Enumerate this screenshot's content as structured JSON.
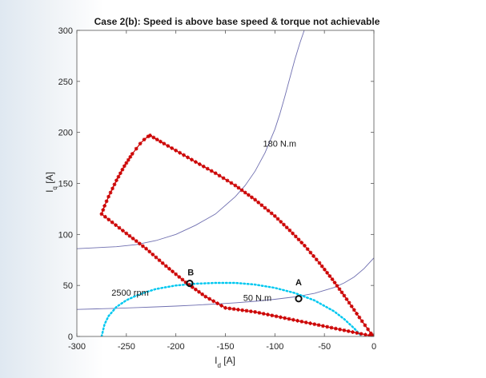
{
  "chart_data": {
    "type": "line",
    "title": "Case 2(b): Speed is above base speed & torque not achievable",
    "xlabel": "I",
    "xlabel_sub": "d",
    "xlabel_unit": "[A]",
    "ylabel": "I",
    "ylabel_sub": "q",
    "ylabel_unit": "[A]",
    "xlim": [
      -300,
      0
    ],
    "ylim": [
      0,
      300
    ],
    "xticks": [
      -300,
      -250,
      -200,
      -150,
      -100,
      -50,
      0
    ],
    "yticks": [
      0,
      50,
      100,
      150,
      200,
      250,
      300
    ],
    "grid": false,
    "series": [
      {
        "name": "",
        "style": "torque-contour",
        "color": "#6f6fb0",
        "x": [
          -300,
          -280,
          -260,
          -240,
          -220,
          -200,
          -180,
          -160,
          -140,
          -130,
          -120,
          -110,
          -100,
          -95,
          -90,
          -85,
          -80,
          -75,
          -70,
          -65
        ],
        "y": [
          86,
          87,
          88,
          90,
          94,
          100,
          109,
          120,
          137,
          148,
          162,
          180,
          203,
          218,
          235,
          253,
          271,
          287,
          301,
          312
        ]
      },
      {
        "name": "",
        "style": "torque-contour",
        "color": "#6f6fb0",
        "x": [
          -300,
          -280,
          -260,
          -240,
          -220,
          -200,
          -180,
          -160,
          -140,
          -120,
          -100,
          -80,
          -60,
          -40,
          -30,
          -20,
          -10,
          0
        ],
        "y": [
          26.5,
          27,
          27.6,
          28.3,
          29,
          29.8,
          30.7,
          31.8,
          33,
          34.5,
          36.4,
          38.8,
          42.2,
          48,
          52.5,
          58.3,
          66.4,
          77
        ]
      },
      {
        "name": "",
        "style": "voltage-ellipse",
        "color": "#00c8f0",
        "x": [
          -275,
          -272,
          -268,
          -260,
          -250,
          -240,
          -230,
          -220,
          -200,
          -180,
          -160,
          -140,
          -120,
          -100,
          -80,
          -60,
          -40,
          -30,
          -20,
          -15,
          -12
        ],
        "y": [
          0,
          12,
          20,
          29,
          35.5,
          40,
          43.5,
          46.5,
          50,
          51.7,
          52.5,
          52.5,
          50.8,
          47.6,
          42.6,
          35.3,
          24.5,
          17,
          8,
          3,
          0
        ]
      },
      {
        "name": "",
        "style": "trajectory",
        "color": "#cc0000",
        "x": [
          -275,
          -272,
          -268,
          -264,
          -260,
          -256,
          -252,
          -248,
          -244,
          -240,
          -236,
          -232,
          -228,
          -226,
          -212,
          -196,
          -180,
          -160,
          -140,
          -120,
          -100,
          -85,
          -70,
          -55,
          -42,
          -30,
          -20,
          -12,
          -6,
          -3,
          -1,
          0,
          -30,
          -60,
          -90,
          -120,
          -150,
          -170,
          -190,
          -210,
          -230,
          -250,
          -275
        ],
        "y": [
          120,
          128,
          137,
          145,
          153,
          160,
          167,
          173,
          179,
          184,
          189,
          193,
          196,
          197,
          189,
          180,
          171,
          160,
          148,
          134,
          118,
          104,
          89,
          72,
          56,
          40,
          26,
          15,
          7,
          3,
          1,
          0,
          6,
          12,
          18,
          24,
          28,
          39,
          53,
          69,
          86,
          101,
          120
        ]
      }
    ],
    "annotations": [
      {
        "text": "180 N.m",
        "x": -112,
        "y": 186
      },
      {
        "text": "50 N.m",
        "x": -132,
        "y": 35
      },
      {
        "text": "2500 rpm",
        "x": -265,
        "y": 40
      },
      {
        "text": "B",
        "x": -185,
        "y": 60
      }
    ],
    "points": [
      {
        "label": "A",
        "x": -76,
        "y": 37
      },
      {
        "label": "B",
        "x": -186,
        "y": 52
      }
    ]
  }
}
